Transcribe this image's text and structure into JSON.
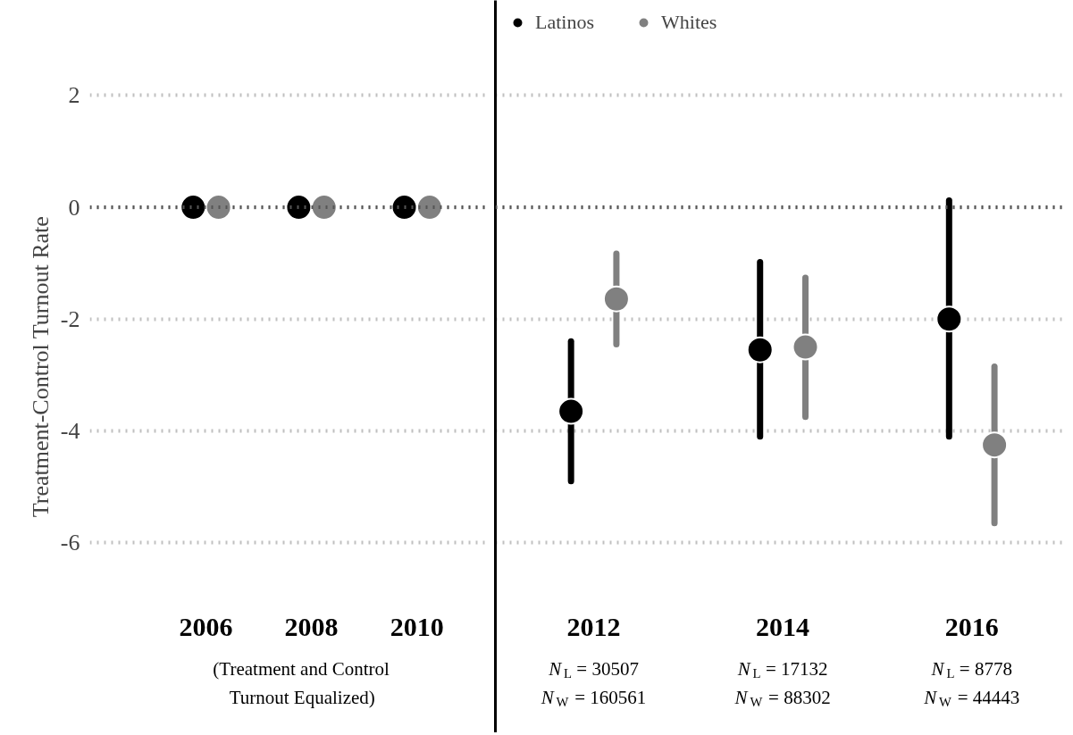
{
  "chart_data": [
    {
      "type": "scatter",
      "ylabel": "Treatment-Control Turnout Rate",
      "categories": [
        "2006",
        "2008",
        "2010"
      ],
      "series": [
        {
          "color": "#000000",
          "values": [
            0,
            0,
            0
          ]
        },
        {
          "color": "#808080",
          "values": [
            0,
            0,
            0
          ]
        }
      ],
      "ylim": [
        -9.4,
        3.7
      ],
      "yticks": [
        -6,
        -4,
        -2,
        0,
        2
      ],
      "grid": "y",
      "marker": "circle",
      "ref_lines": [
        {
          "axis": "y",
          "value": 0,
          "color": "#555555",
          "line_style": "dotted"
        }
      ],
      "annotations": [
        "(Treatment and Control\nTurnout Equalized)"
      ]
    },
    {
      "type": "scatter",
      "categories": [
        "2012",
        "2014",
        "2016"
      ],
      "series": [
        {
          "name": "Latinos",
          "color": "#000000",
          "values": [
            -3.65,
            -2.55,
            -2.0
          ],
          "errors": [
            [
              -4.9,
              -2.4
            ],
            [
              -4.1,
              -0.98
            ],
            [
              -4.1,
              0.12
            ]
          ]
        },
        {
          "name": "Whites",
          "color": "#808080",
          "values": [
            -1.64,
            -2.5,
            -4.25
          ],
          "errors": [
            [
              -2.45,
              -0.83
            ],
            [
              -3.75,
              -1.26
            ],
            [
              -2.85,
              -5.65
            ]
          ]
        }
      ],
      "ylim": [
        -9.4,
        3.7
      ],
      "yticks": [
        -6,
        -4,
        -2,
        0,
        2
      ],
      "tick_labels": "x",
      "grid": "y",
      "marker": "circle",
      "legend": "top",
      "ref_lines": [
        {
          "axis": "y",
          "value": 0,
          "color": "#555555",
          "line_style": "dotted"
        }
      ],
      "annotations": [
        "N$_{L}$ = 30507\nN$_{W}$ = 160561",
        "N$_{L}$ = 17132\nN$_{W}$ = 88302",
        "N$_{L}$ = 8778\nN$_{W}$ = 44443"
      ]
    }
  ]
}
